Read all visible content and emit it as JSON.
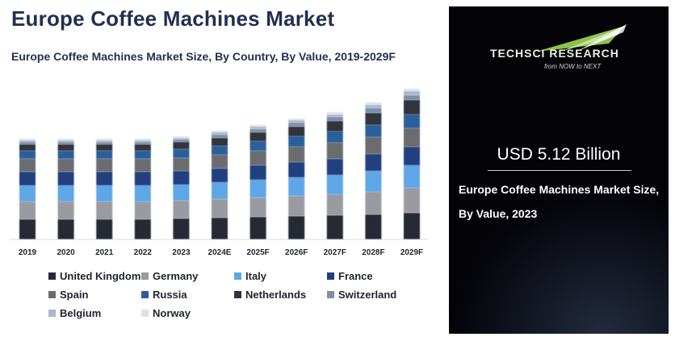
{
  "header": {
    "title": "Europe Coffee Machines Market",
    "subtitle": "Europe Coffee Machines Market Size, By Country, By Value, 2019-2029F"
  },
  "chart_data": {
    "type": "bar",
    "stacked": true,
    "categories": [
      "2019",
      "2020",
      "2021",
      "2022",
      "2023",
      "2024E",
      "2025F",
      "2026F",
      "2027F",
      "2028F",
      "2029F"
    ],
    "series": [
      {
        "name": "United Kingdom",
        "color": "#252a36",
        "values": [
          25,
          25,
          25,
          25,
          26,
          27,
          28,
          29,
          30,
          31,
          33
        ]
      },
      {
        "name": "Germany",
        "color": "#9a9ba0",
        "values": [
          22,
          22,
          22,
          22,
          22,
          23,
          24,
          25,
          26,
          28,
          31
        ]
      },
      {
        "name": "Italy",
        "color": "#5ea6e6",
        "values": [
          20,
          20,
          20,
          20,
          20,
          21,
          22,
          23,
          24,
          26,
          28
        ]
      },
      {
        "name": "France",
        "color": "#233f80",
        "values": [
          17,
          17,
          17,
          17,
          17,
          17,
          18,
          19,
          20,
          21,
          23
        ]
      },
      {
        "name": "Spain",
        "color": "#6b6c70",
        "values": [
          16,
          16,
          16,
          16,
          16,
          17,
          18,
          19,
          20,
          21,
          23
        ]
      },
      {
        "name": "Russia",
        "color": "#2c5e9c",
        "values": [
          10,
          10,
          10,
          10,
          11,
          11,
          12,
          13,
          14,
          15,
          17
        ]
      },
      {
        "name": "Netherlands",
        "color": "#30343e",
        "values": [
          8,
          8,
          8,
          8,
          9,
          10,
          11,
          12,
          13,
          15,
          18
        ]
      },
      {
        "name": "Switzerland",
        "color": "#7d8fa6",
        "values": [
          3,
          3,
          3,
          3,
          3,
          4,
          4,
          5,
          5,
          6,
          6
        ]
      },
      {
        "name": "Belgium",
        "color": "#a9b8cd",
        "values": [
          2,
          2,
          2,
          2,
          2,
          3,
          3,
          3,
          3,
          4,
          5
        ]
      },
      {
        "name": "Norway",
        "color": "#dde2ea",
        "values": [
          2,
          2,
          2,
          2,
          2,
          2,
          2,
          2,
          3,
          3,
          3
        ]
      }
    ],
    "ylim": [
      0,
      200
    ],
    "axis_visible": false,
    "grid": false,
    "legend_position": "bottom"
  },
  "panel": {
    "logo_name": "TECHSCI RESEARCH",
    "logo_tagline": "from NOW to NEXT",
    "value": "USD 5.12 Billion",
    "description_line1": "Europe Coffee Machines Market Size,",
    "description_line2": "By Value, 2023"
  }
}
